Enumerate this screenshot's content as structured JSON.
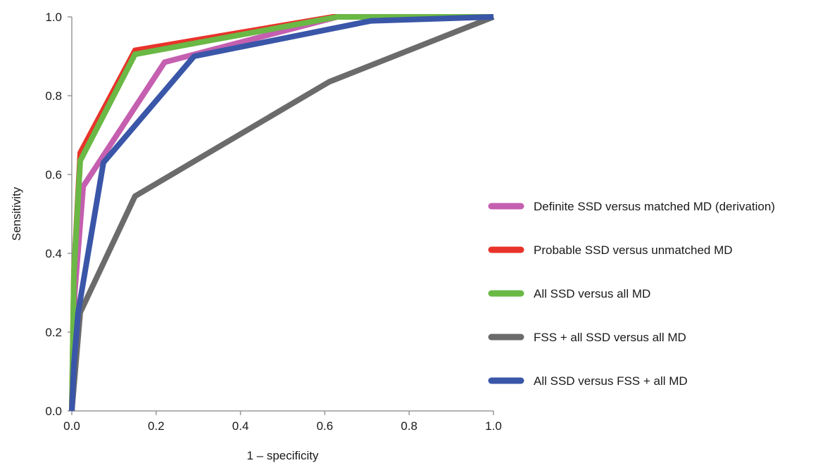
{
  "chart_data": {
    "type": "line",
    "title": "",
    "xlabel": "1 – specificity",
    "ylabel": "Sensitivity",
    "xlim": [
      0,
      1
    ],
    "ylim": [
      0,
      1
    ],
    "x_ticks": [
      "0.0",
      "0.2",
      "0.4",
      "0.6",
      "0.8",
      "1.0"
    ],
    "y_ticks": [
      "0.0",
      "0.2",
      "0.4",
      "0.6",
      "0.8",
      "1.0"
    ],
    "grid": false,
    "legend_position": "right",
    "series": [
      {
        "name": "FSS + all SSD versus all MD",
        "color": "#6b6b6b",
        "points": [
          [
            0,
            0
          ],
          [
            0.02,
            0.25
          ],
          [
            0.15,
            0.545
          ],
          [
            0.61,
            0.835
          ],
          [
            1.0,
            1.0
          ]
        ]
      },
      {
        "name": "Definite SSD versus matched MD (derivation)",
        "color": "#c55fb0",
        "points": [
          [
            0,
            0
          ],
          [
            0.007,
            0.3
          ],
          [
            0.027,
            0.57
          ],
          [
            0.22,
            0.885
          ],
          [
            0.63,
            1.0
          ],
          [
            1.0,
            1.0
          ]
        ]
      },
      {
        "name": "Probable SSD versus unmatched MD",
        "color": "#e8332a",
        "points": [
          [
            0,
            0
          ],
          [
            0.005,
            0.35
          ],
          [
            0.02,
            0.655
          ],
          [
            0.15,
            0.915
          ],
          [
            0.62,
            1.0
          ],
          [
            1.0,
            1.0
          ]
        ]
      },
      {
        "name": "All SSD versus all MD",
        "color": "#6ab845",
        "points": [
          [
            0,
            0
          ],
          [
            0.005,
            0.35
          ],
          [
            0.02,
            0.635
          ],
          [
            0.15,
            0.905
          ],
          [
            0.63,
            1.0
          ],
          [
            1.0,
            1.0
          ]
        ]
      },
      {
        "name": "All SSD versus FSS + all MD",
        "color": "#3a56a8",
        "points": [
          [
            0,
            0
          ],
          [
            0.005,
            0.12
          ],
          [
            0.015,
            0.25
          ],
          [
            0.075,
            0.63
          ],
          [
            0.29,
            0.9
          ],
          [
            0.71,
            0.99
          ],
          [
            1.0,
            1.0
          ]
        ]
      }
    ],
    "legend_order": [
      "Definite SSD versus matched MD (derivation)",
      "Probable SSD versus unmatched MD",
      "All SSD versus all MD",
      "FSS + all SSD versus all MD",
      "All SSD versus FSS + all MD"
    ]
  }
}
